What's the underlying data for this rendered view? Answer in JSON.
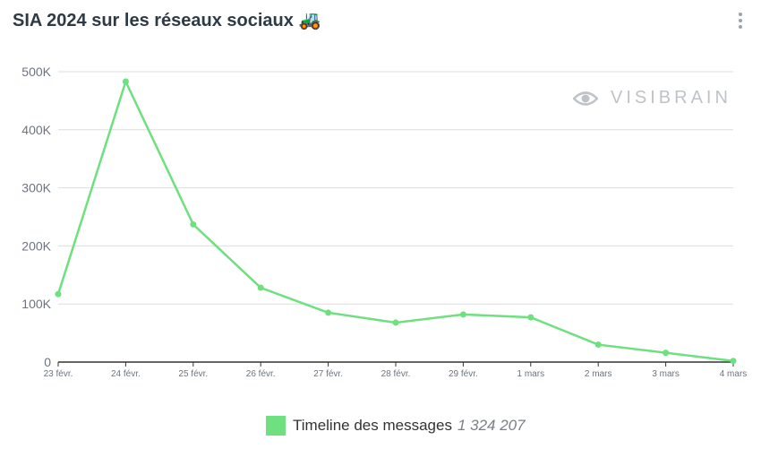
{
  "header": {
    "title": "SIA 2024 sur les réseaux sociaux",
    "title_emoji": "🚜",
    "menu_icon": "vertical-ellipsis-icon"
  },
  "watermark": {
    "icon": "eye-icon",
    "text": "VISIBRAIN"
  },
  "legend": {
    "series_name": "Timeline des messages",
    "total": "1 324 207"
  },
  "colors": {
    "line": "#6ee07f",
    "grid": "#dddddd",
    "axis": "#333333",
    "tick": "#6b7480"
  },
  "chart_data": {
    "type": "line",
    "categories": [
      "23 févr.",
      "24 févr.",
      "25 févr.",
      "26 févr.",
      "27 févr.",
      "28 févr.",
      "29 févr.",
      "1 mars",
      "2 mars",
      "3 mars",
      "4 mars"
    ],
    "series": [
      {
        "name": "Timeline des messages",
        "values": [
          117000,
          483000,
          237000,
          128000,
          85000,
          68000,
          82000,
          77000,
          30000,
          16000,
          2000
        ]
      }
    ],
    "ylim": [
      0,
      500000
    ],
    "yticks": [
      0,
      100000,
      200000,
      300000,
      400000,
      500000
    ],
    "ytick_labels": [
      "0",
      "100K",
      "200K",
      "300K",
      "400K",
      "500K"
    ],
    "grid": true,
    "legend_position": "bottom-center",
    "xlabel": "",
    "ylabel": ""
  }
}
